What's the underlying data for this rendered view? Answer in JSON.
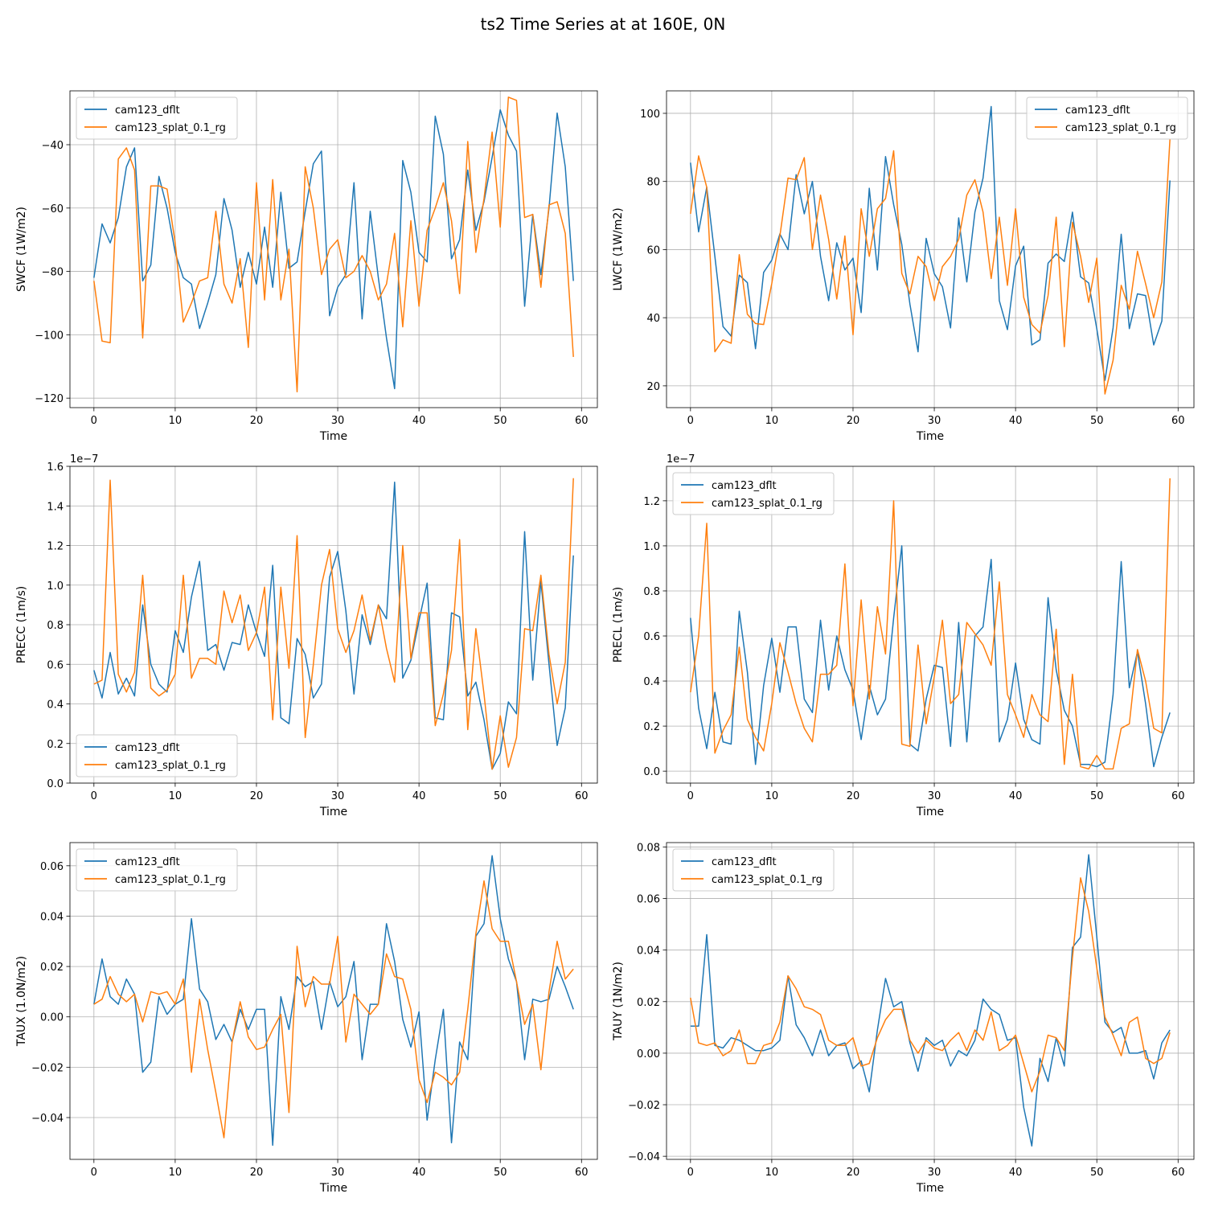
{
  "figure": {
    "title": "ts2 Time Series at at 160E, 0N",
    "colors": {
      "dflt": "#1f77b4",
      "splat": "#ff7f0e"
    }
  },
  "chart_data": [
    {
      "type": "line",
      "xlabel": "Time",
      "ylabel": "SWCF (1W/m2)",
      "xlim": [
        -2.95,
        61.95
      ],
      "ylim": [
        -123.0,
        -23.0
      ],
      "xticks": [
        0,
        10,
        20,
        30,
        40,
        50,
        60
      ],
      "yticks": [
        -120,
        -100,
        -80,
        -60,
        -40
      ],
      "ytick_labels": [
        "−120",
        "−100",
        "−80",
        "−60",
        "−40"
      ],
      "offset_label": "",
      "legend_loc": "upper left",
      "series": [
        {
          "name": "cam123_dflt",
          "color": "#1f77b4",
          "values": [
            -82,
            -65,
            -71,
            -63,
            -47,
            -41,
            -83,
            -78,
            -50,
            -60,
            -74,
            -82,
            -84,
            -98,
            -90,
            -81,
            -57,
            -67,
            -85,
            -74,
            -84,
            -66,
            -85,
            -55,
            -79,
            -77,
            -61,
            -46,
            -42,
            -94,
            -85,
            -81,
            -52,
            -95,
            -61,
            -82,
            -101,
            -117,
            -45,
            -55,
            -74,
            -77,
            -31,
            -43,
            -76,
            -70,
            -48,
            -67,
            -58,
            -44,
            -29,
            -37,
            -42,
            -91,
            -62,
            -81,
            -60,
            -30,
            -47,
            -83
          ]
        },
        {
          "name": "cam123_splat_0.1_rg",
          "color": "#ff7f0e",
          "values": [
            -83,
            -102,
            -102.5,
            -44.5,
            -41,
            -48,
            -101,
            -53,
            -53,
            -54,
            -71,
            -96,
            -90,
            -83,
            -82,
            -61,
            -84,
            -90,
            -76,
            -104,
            -52,
            -89,
            -51,
            -89,
            -73,
            -118,
            -47,
            -60,
            -81,
            -73,
            -70,
            -82,
            -80,
            -75,
            -80,
            -89,
            -84,
            -68,
            -97.5,
            -64,
            -91,
            -67,
            -60,
            -52,
            -64,
            -87,
            -39,
            -74,
            -57,
            -36,
            -66,
            -25,
            -26,
            -63,
            -62,
            -85,
            -59,
            -58,
            -68,
            -107
          ]
        }
      ]
    },
    {
      "type": "line",
      "xlabel": "Time",
      "ylabel": "LWCF (1W/m2)",
      "xlim": [
        -2.95,
        61.95
      ],
      "ylim": [
        13.6,
        106.6
      ],
      "xticks": [
        0,
        10,
        20,
        30,
        40,
        50,
        60
      ],
      "yticks": [
        20,
        40,
        60,
        80,
        100
      ],
      "ytick_labels": [
        "20",
        "40",
        "60",
        "80",
        "100"
      ],
      "offset_label": "",
      "legend_loc": "upper right",
      "series": [
        {
          "name": "cam123_dflt",
          "color": "#1f77b4",
          "values": [
            85.5,
            65.2,
            78.3,
            58,
            37.4,
            34.6,
            52.5,
            50.3,
            30.9,
            53.3,
            56.9,
            64.6,
            60,
            82,
            70.5,
            80,
            58,
            45,
            62,
            54,
            57.5,
            41.5,
            78,
            54,
            87.3,
            73.2,
            61.5,
            44,
            30,
            63.3,
            52.9,
            49.1,
            37,
            69.3,
            50.5,
            71,
            81,
            102,
            45,
            36.5,
            55.2,
            61,
            32,
            33.5,
            56,
            58.7,
            56.5,
            71,
            52,
            50.2,
            36.7,
            21.6,
            37,
            64.5,
            36.8,
            47,
            46.5,
            32,
            39,
            80.3
          ]
        },
        {
          "name": "cam123_splat_0.1_rg",
          "color": "#ff7f0e",
          "values": [
            70.5,
            87.5,
            78.3,
            30,
            33.5,
            32.5,
            58.5,
            41,
            38.3,
            38,
            50,
            64,
            81,
            80.5,
            87,
            60,
            76,
            63,
            45.5,
            64,
            35,
            72,
            58,
            72,
            75,
            89,
            53,
            47,
            58,
            55,
            45,
            55,
            58,
            63,
            76,
            80.5,
            71,
            51.5,
            69.5,
            49.5,
            72,
            46,
            38,
            35.5,
            46.5,
            69.5,
            31.5,
            68,
            58,
            44.5,
            57.5,
            17.6,
            27.5,
            49.5,
            42.5,
            59.5,
            50,
            40,
            50.5,
            92.5
          ]
        }
      ]
    },
    {
      "type": "line",
      "xlabel": "Time",
      "ylabel": "PRECC (1m/s)",
      "xlim": [
        -2.95,
        61.95
      ],
      "ylim": [
        0.0,
        1.6
      ],
      "xticks": [
        0,
        10,
        20,
        30,
        40,
        50,
        60
      ],
      "yticks": [
        0.0,
        0.2,
        0.4,
        0.6,
        0.8,
        1.0,
        1.2,
        1.4,
        1.6
      ],
      "ytick_labels": [
        "0.0",
        "0.2",
        "0.4",
        "0.6",
        "0.8",
        "1.0",
        "1.2",
        "1.4",
        "1.6"
      ],
      "offset_label": "1e−7",
      "legend_loc": "lower left",
      "series": [
        {
          "name": "cam123_dflt",
          "color": "#1f77b4",
          "values": [
            0.57,
            0.43,
            0.66,
            0.45,
            0.53,
            0.44,
            0.9,
            0.6,
            0.5,
            0.46,
            0.77,
            0.66,
            0.94,
            1.12,
            0.67,
            0.7,
            0.57,
            0.71,
            0.7,
            0.9,
            0.76,
            0.64,
            1.1,
            0.33,
            0.3,
            0.73,
            0.65,
            0.43,
            0.5,
            1.04,
            1.17,
            0.87,
            0.45,
            0.85,
            0.7,
            0.9,
            0.83,
            1.52,
            0.53,
            0.62,
            0.82,
            1.01,
            0.33,
            0.32,
            0.86,
            0.84,
            0.44,
            0.51,
            0.32,
            0.07,
            0.15,
            0.41,
            0.35,
            1.27,
            0.52,
            1.02,
            0.6,
            0.19,
            0.38,
            1.15
          ]
        },
        {
          "name": "cam123_splat_0.1_rg",
          "color": "#ff7f0e",
          "values": [
            0.5,
            0.52,
            1.53,
            0.55,
            0.46,
            0.56,
            1.05,
            0.48,
            0.44,
            0.47,
            0.55,
            1.05,
            0.53,
            0.63,
            0.63,
            0.6,
            0.97,
            0.81,
            0.95,
            0.67,
            0.76,
            0.99,
            0.32,
            0.99,
            0.58,
            1.25,
            0.23,
            0.6,
            1.0,
            1.18,
            0.78,
            0.66,
            0.77,
            0.95,
            0.72,
            0.9,
            0.68,
            0.51,
            1.2,
            0.63,
            0.86,
            0.86,
            0.29,
            0.45,
            0.67,
            1.23,
            0.27,
            0.78,
            0.45,
            0.07,
            0.34,
            0.08,
            0.23,
            0.78,
            0.77,
            1.05,
            0.65,
            0.4,
            0.61,
            1.54
          ]
        }
      ]
    },
    {
      "type": "line",
      "xlabel": "Time",
      "ylabel": "PRECL (1m/s)",
      "xlim": [
        -2.95,
        61.95
      ],
      "ylim": [
        -0.053,
        1.353
      ],
      "xticks": [
        0,
        10,
        20,
        30,
        40,
        50,
        60
      ],
      "yticks": [
        0.0,
        0.2,
        0.4,
        0.6,
        0.8,
        1.0,
        1.2
      ],
      "ytick_labels": [
        "0.0",
        "0.2",
        "0.4",
        "0.6",
        "0.8",
        "1.0",
        "1.2"
      ],
      "offset_label": "1e−7",
      "legend_loc": "upper left",
      "series": [
        {
          "name": "cam123_dflt",
          "color": "#1f77b4",
          "values": [
            0.68,
            0.28,
            0.1,
            0.35,
            0.13,
            0.12,
            0.71,
            0.44,
            0.03,
            0.38,
            0.59,
            0.35,
            0.64,
            0.64,
            0.32,
            0.26,
            0.67,
            0.36,
            0.6,
            0.45,
            0.36,
            0.14,
            0.38,
            0.25,
            0.32,
            0.68,
            1.0,
            0.12,
            0.09,
            0.32,
            0.47,
            0.46,
            0.11,
            0.66,
            0.13,
            0.6,
            0.64,
            0.94,
            0.13,
            0.23,
            0.48,
            0.23,
            0.14,
            0.12,
            0.77,
            0.45,
            0.27,
            0.2,
            0.03,
            0.03,
            0.02,
            0.04,
            0.34,
            0.93,
            0.37,
            0.53,
            0.3,
            0.02,
            0.15,
            0.26
          ]
        },
        {
          "name": "cam123_splat_0.1_rg",
          "color": "#ff7f0e",
          "values": [
            0.35,
            0.6,
            1.1,
            0.08,
            0.18,
            0.25,
            0.55,
            0.23,
            0.15,
            0.09,
            0.3,
            0.57,
            0.44,
            0.3,
            0.19,
            0.13,
            0.43,
            0.43,
            0.47,
            0.92,
            0.29,
            0.76,
            0.32,
            0.73,
            0.52,
            1.2,
            0.12,
            0.11,
            0.56,
            0.21,
            0.42,
            0.67,
            0.3,
            0.34,
            0.66,
            0.61,
            0.56,
            0.47,
            0.84,
            0.34,
            0.25,
            0.15,
            0.34,
            0.25,
            0.22,
            0.63,
            0.03,
            0.43,
            0.02,
            0.01,
            0.07,
            0.01,
            0.01,
            0.19,
            0.21,
            0.54,
            0.4,
            0.19,
            0.17,
            1.3
          ]
        }
      ]
    },
    {
      "type": "line",
      "xlabel": "Time",
      "ylabel": "TAUX (1.0N/m2)",
      "xlim": [
        -2.95,
        61.95
      ],
      "ylim": [
        -0.0566,
        0.0692
      ],
      "xticks": [
        0,
        10,
        20,
        30,
        40,
        50,
        60
      ],
      "yticks": [
        -0.04,
        -0.02,
        0.0,
        0.02,
        0.04,
        0.06
      ],
      "ytick_labels": [
        "−0.04",
        "−0.02",
        "0.00",
        "0.02",
        "0.04",
        "0.06"
      ],
      "offset_label": "",
      "legend_loc": "upper left",
      "series": [
        {
          "name": "cam123_dflt",
          "color": "#1f77b4",
          "values": [
            0.005,
            0.023,
            0.008,
            0.005,
            0.015,
            0.009,
            -0.022,
            -0.018,
            0.008,
            0.001,
            0.005,
            0.007,
            0.039,
            0.011,
            0.006,
            -0.009,
            -0.003,
            -0.01,
            0.003,
            -0.005,
            0.003,
            0.003,
            -0.051,
            0.008,
            -0.005,
            0.016,
            0.012,
            0.014,
            -0.005,
            0.014,
            0.004,
            0.008,
            0.022,
            -0.017,
            0.005,
            0.005,
            0.037,
            0.022,
            -0.001,
            -0.012,
            0.002,
            -0.041,
            -0.017,
            0.003,
            -0.05,
            -0.01,
            -0.017,
            0.032,
            0.037,
            0.064,
            0.039,
            0.023,
            0.014,
            -0.017,
            0.007,
            0.006,
            0.007,
            0.02,
            0.012,
            0.003
          ]
        },
        {
          "name": "cam123_splat_0.1_rg",
          "color": "#ff7f0e",
          "values": [
            0.005,
            0.007,
            0.016,
            0.009,
            0.006,
            0.009,
            -0.002,
            0.01,
            0.009,
            0.01,
            0.005,
            0.015,
            -0.022,
            0.007,
            -0.013,
            -0.03,
            -0.048,
            -0.01,
            0.006,
            -0.008,
            -0.013,
            -0.012,
            -0.005,
            0.001,
            -0.038,
            0.028,
            0.004,
            0.016,
            0.013,
            0.013,
            0.032,
            -0.01,
            0.009,
            0.005,
            0.001,
            0.005,
            0.025,
            0.016,
            0.015,
            0.003,
            -0.025,
            -0.034,
            -0.022,
            -0.024,
            -0.027,
            -0.022,
            0.003,
            0.033,
            0.054,
            0.035,
            0.03,
            0.03,
            0.014,
            -0.003,
            0.005,
            -0.021,
            0.01,
            0.03,
            0.015,
            0.019
          ]
        }
      ]
    },
    {
      "type": "line",
      "xlabel": "Time",
      "ylabel": "TAUY (1N/m2)",
      "xlim": [
        -2.95,
        61.95
      ],
      "ylim": [
        -0.0412,
        0.0817
      ],
      "xticks": [
        0,
        10,
        20,
        30,
        40,
        50,
        60
      ],
      "yticks": [
        -0.04,
        -0.02,
        0.0,
        0.02,
        0.04,
        0.06,
        0.08
      ],
      "ytick_labels": [
        "−0.04",
        "−0.02",
        "0.00",
        "0.02",
        "0.04",
        "0.06",
        "0.08"
      ],
      "offset_label": "",
      "legend_loc": "upper left",
      "series": [
        {
          "name": "cam123_dflt",
          "color": "#1f77b4",
          "values": [
            0.0105,
            0.0105,
            0.046,
            0.003,
            0.002,
            0.006,
            0.005,
            0.003,
            0.001,
            0.001,
            0.002,
            0.005,
            0.03,
            0.011,
            0.006,
            -0.001,
            0.009,
            -0.001,
            0.003,
            0.004,
            -0.006,
            -0.003,
            -0.015,
            0.009,
            0.029,
            0.018,
            0.02,
            0.004,
            -0.007,
            0.006,
            0.003,
            0.005,
            -0.005,
            0.001,
            -0.001,
            0.005,
            0.021,
            0.017,
            0.015,
            0.005,
            0.006,
            -0.021,
            -0.036,
            -0.002,
            -0.011,
            0.006,
            -0.005,
            0.041,
            0.045,
            0.077,
            0.045,
            0.012,
            0.008,
            0.01,
            0.0,
            0.0,
            0.001,
            -0.01,
            0.004,
            0.009
          ]
        },
        {
          "name": "cam123_splat_0.1_rg",
          "color": "#ff7f0e",
          "values": [
            0.0215,
            0.004,
            0.003,
            0.004,
            -0.001,
            0.001,
            0.009,
            -0.004,
            -0.004,
            0.003,
            0.004,
            0.012,
            0.03,
            0.025,
            0.018,
            0.017,
            0.015,
            0.005,
            0.003,
            0.003,
            0.006,
            -0.005,
            -0.004,
            0.006,
            0.013,
            0.017,
            0.017,
            0.005,
            0.0,
            0.005,
            0.002,
            0.001,
            0.005,
            0.008,
            0.001,
            0.009,
            0.005,
            0.016,
            0.001,
            0.003,
            0.007,
            -0.004,
            -0.015,
            -0.007,
            0.007,
            0.006,
            0.001,
            0.037,
            0.068,
            0.055,
            0.033,
            0.014,
            0.007,
            -0.001,
            0.012,
            0.014,
            -0.002,
            -0.004,
            -0.002,
            0.008
          ]
        }
      ]
    }
  ]
}
